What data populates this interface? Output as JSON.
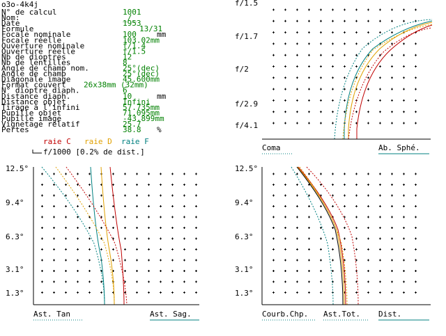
{
  "window_title": "o3o-4k4j",
  "params": [
    {
      "label": "N° de calcul",
      "value": "1001",
      "unit": ""
    },
    {
      "label": "Nom:",
      "value": "_/_",
      "unit": ""
    },
    {
      "label": "Date",
      "value": "1953",
      "unit": ""
    },
    {
      "label": "Formule",
      "value": "13/31",
      "unit": ""
    },
    {
      "label": "Focale nominale",
      "value": "100",
      "unit": "mm"
    },
    {
      "label": "Focale réelle",
      "value": "103.02mm",
      "unit": ""
    },
    {
      "label": "Ouverture nominale",
      "value": "f/1.4",
      "unit": ""
    },
    {
      "label": "Ouverture réelle",
      "value": "f/1.5",
      "unit": ""
    },
    {
      "label": "Nb de dioptres",
      "value": "12",
      "unit": ""
    },
    {
      "label": "Nb de lentilles",
      "value": "8",
      "unit": ""
    },
    {
      "label": "Angle de champ nom.",
      "value": "25°(dec)",
      "unit": ""
    },
    {
      "label": "Angle de champ",
      "value": "25°(dec)",
      "unit": ""
    },
    {
      "label": "Diagonale image",
      "value": "45.600mm",
      "unit": ""
    },
    {
      "label": "Format couvert",
      "value": "26x38mm (32mm)",
      "unit": ""
    },
    {
      "label": "N° dioptre diaph.",
      "value": "6",
      "unit": ""
    },
    {
      "label": "Distance diaph.",
      "value": "10",
      "unit": "mm"
    },
    {
      "label": "Distance objet",
      "value": "Infini",
      "unit": ""
    },
    {
      "label": "Tirage à l'infini",
      "value": "57.735mm",
      "unit": ""
    },
    {
      "label": "Pupille objet",
      "value": "71.095mm",
      "unit": ""
    },
    {
      "label": "Pupille image",
      "value": "-43.899mm",
      "unit": ""
    },
    {
      "label": "Vignetage relatif",
      "value": "25.7",
      "unit": ""
    },
    {
      "label": "Pertes",
      "value": "38.8",
      "unit": "%"
    }
  ],
  "legend": {
    "raie_c": "raie C",
    "raie_d": "raie D",
    "raie_f": "raie F",
    "scale": "f/1000 [0.2% de dist.]"
  },
  "colors": {
    "raie_c": "#c00000",
    "raie_d": "#e0a000",
    "raie_f": "#008080",
    "value_green": "#008000"
  },
  "aperture_chart": {
    "y_labels": [
      "f/1.5",
      "f/1.7",
      "f/2",
      "f/2.9",
      "f/4.1"
    ],
    "label_left": "Coma",
    "label_right": "Ab. Sphé."
  },
  "field_chart_left": {
    "y_labels": [
      "12.5°",
      "9.4°",
      "6.3°",
      "3.1°",
      "1.3°"
    ],
    "label_left": "Ast. Tan",
    "label_right": "Ast. Sag."
  },
  "field_chart_right": {
    "y_labels": [
      "12.5°",
      "9.4°",
      "6.3°",
      "3.1°",
      "1.3°"
    ],
    "label_1": "Courb.Chp.",
    "label_2": "Ast.Tot.",
    "label_3": "Dist."
  },
  "chart_data": [
    {
      "type": "line",
      "title": "",
      "ylabels": [
        "f/1.5",
        "f/1.7",
        "f/2",
        "f/2.9",
        "f/4.1"
      ],
      "series": [
        {
          "name": "raie C"
        },
        {
          "name": "raie D"
        },
        {
          "name": "raie F"
        }
      ],
      "xlabel": "Ab. Sphé."
    },
    {
      "type": "line",
      "ylabels": [
        "12.5°",
        "9.4°",
        "6.3°",
        "3.1°",
        "1.3°"
      ],
      "series": [
        {
          "name": "raie C"
        },
        {
          "name": "raie D"
        },
        {
          "name": "raie F"
        }
      ],
      "xlabel": "Ast. Tan / Ast. Sag."
    },
    {
      "type": "line",
      "ylabels": [
        "12.5°",
        "9.4°",
        "6.3°",
        "3.1°",
        "1.3°"
      ],
      "series": [
        {
          "name": "raie C"
        },
        {
          "name": "raie D"
        },
        {
          "name": "raie F"
        }
      ],
      "xlabel": "Courb.Chp. / Ast.Tot. / Dist."
    }
  ]
}
